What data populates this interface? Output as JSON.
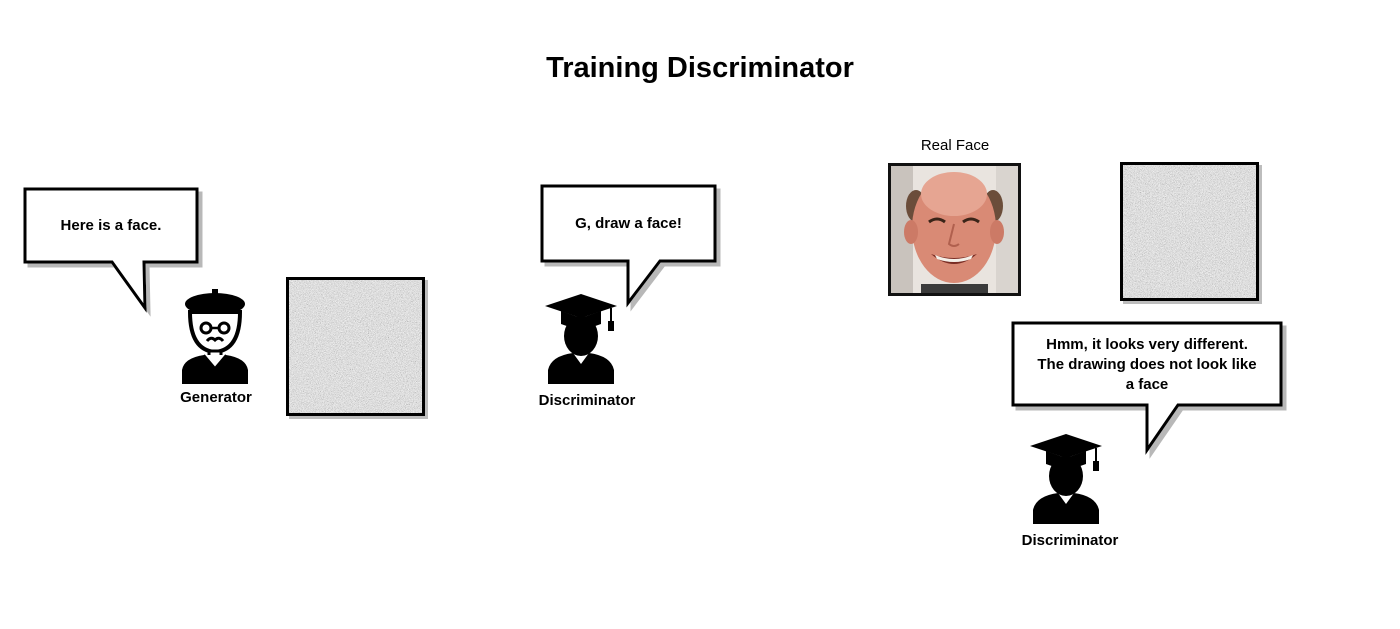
{
  "title": "Training Discriminator",
  "generator_scene": {
    "speech": "Here is a face.",
    "label": "Generator",
    "icon": "artist-icon"
  },
  "discriminator_request_scene": {
    "speech": "G, draw a face!",
    "label": "Discriminator",
    "icon": "graduate-icon"
  },
  "comparison_scene": {
    "real_face_label": "Real Face",
    "speech_lines": [
      "Hmm, it looks very different.",
      "The drawing does not look like",
      "a face"
    ],
    "label": "Discriminator",
    "icon": "graduate-icon"
  }
}
